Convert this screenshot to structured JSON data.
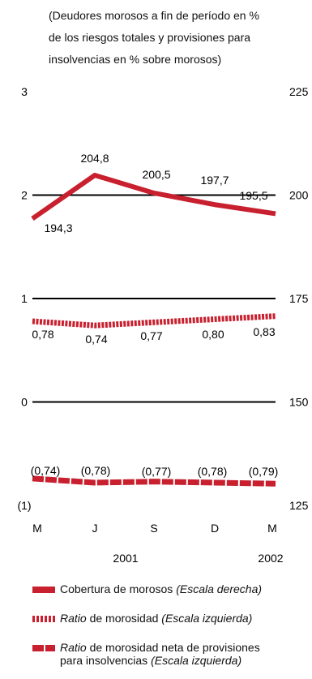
{
  "chart_data": {
    "type": "line",
    "subtitle": [
      "(Deudores morosos a fin de período en %",
      "de los riesgos totales y provisiones para",
      "insolvencias en % sobre morosos)"
    ],
    "categories": [
      "M",
      "J",
      "S",
      "D",
      "M"
    ],
    "year_labels": [
      "2001",
      "2002"
    ],
    "left_axis": {
      "range": [
        -1,
        3
      ],
      "ticks": [
        "(1)",
        "0",
        "1",
        "2",
        "3"
      ],
      "tick_values": [
        -1,
        0,
        1,
        2,
        3
      ]
    },
    "right_axis": {
      "range": [
        125,
        225
      ],
      "ticks": [
        "125",
        "150",
        "175",
        "200",
        "225"
      ],
      "tick_values": [
        125,
        150,
        175,
        200,
        225
      ]
    },
    "series": [
      {
        "name": "Cobertura de morosos",
        "axis": "right",
        "values": [
          194.3,
          204.8,
          200.5,
          197.7,
          195.5
        ],
        "labels": [
          "194,3",
          "204,8",
          "200,5",
          "197,7",
          "195,5"
        ]
      },
      {
        "name": "Ratio de morosidad",
        "axis": "left",
        "values": [
          0.78,
          0.74,
          0.77,
          0.8,
          0.83
        ],
        "labels": [
          "0,78",
          "0,74",
          "0,77",
          "0,80",
          "0,83"
        ]
      },
      {
        "name": "Ratio de morosidad neta de provisiones para insolvencias",
        "axis": "left",
        "values": [
          -0.74,
          -0.78,
          -0.77,
          -0.78,
          -0.79
        ],
        "labels": [
          "(0,74)",
          "(0,78)",
          "(0,77)",
          "(0,78)",
          "(0,79)"
        ]
      }
    ],
    "gridlines": [
      0,
      1,
      2
    ],
    "colors": {
      "series": "#c8202f",
      "grid": "#000000"
    }
  },
  "legend": [
    {
      "italic_pre": "",
      "text": "Cobertura de morosos",
      "italic_post": "(Escala derecha)"
    },
    {
      "italic_pre": "Ratio",
      "text": " de morosidad",
      "italic_post": "(Escala izquierda)"
    },
    {
      "italic_pre": "Ratio",
      "text": " de morosidad neta de provisiones",
      "line2": "para insolvencias",
      "italic_post": "(Escala izquierda)"
    }
  ]
}
